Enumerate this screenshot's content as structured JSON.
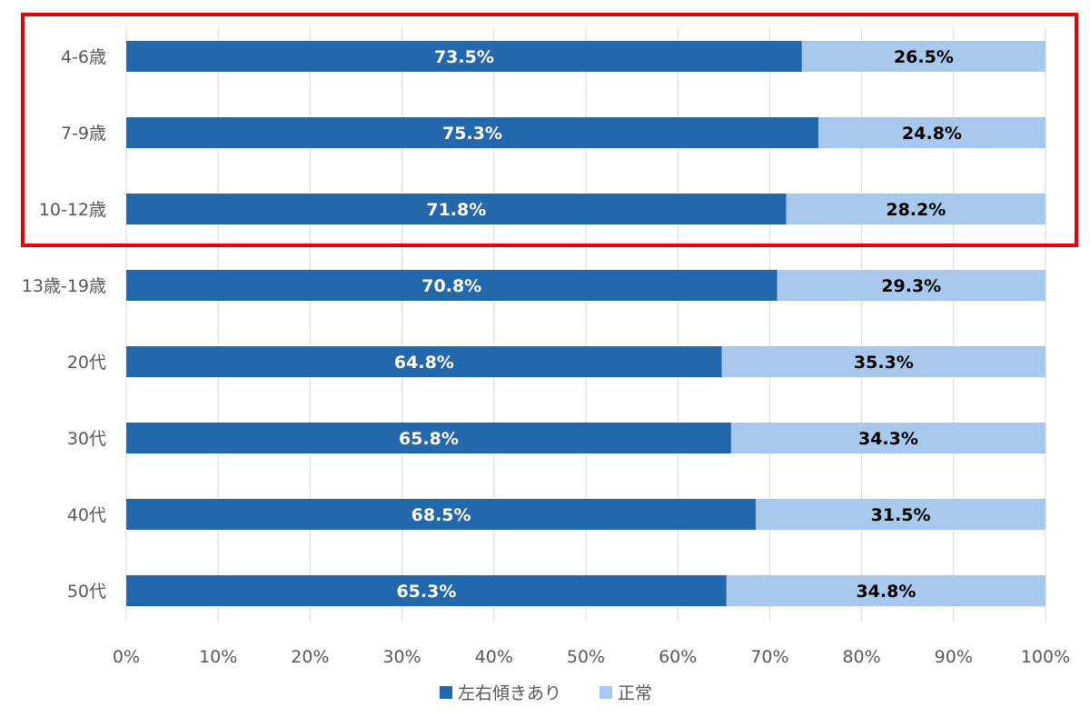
{
  "chart_data": {
    "type": "bar",
    "orientation": "horizontal",
    "stacked": true,
    "title": "",
    "xlabel": "",
    "ylabel": "",
    "xlim": [
      0,
      100
    ],
    "x_tick_labels": [
      "0%",
      "10%",
      "20%",
      "30%",
      "40%",
      "50%",
      "60%",
      "70%",
      "80%",
      "90%",
      "100%"
    ],
    "categories": [
      "4-6歳",
      "7-9歳",
      "10-12歳",
      "13歳-19歳",
      "20代",
      "30代",
      "40代",
      "50代"
    ],
    "series": [
      {
        "name": "左右傾きあり",
        "color": "#2268AA",
        "label_color": "#ffffff",
        "values": [
          73.5,
          75.3,
          71.8,
          70.8,
          64.8,
          65.8,
          68.5,
          65.3
        ],
        "labels": [
          "73.5%",
          "75.3%",
          "71.8%",
          "70.8%",
          "64.8%",
          "65.8%",
          "68.5%",
          "65.3%"
        ]
      },
      {
        "name": "正常",
        "color": "#A8C9ED",
        "label_color": "#000000",
        "values": [
          26.5,
          24.8,
          28.2,
          29.3,
          35.3,
          34.3,
          31.5,
          34.8
        ],
        "labels": [
          "26.5%",
          "24.8%",
          "28.2%",
          "29.3%",
          "35.3%",
          "34.3%",
          "31.5%",
          "34.8%"
        ]
      }
    ],
    "grid": true,
    "grid_color": "#D9D9D9",
    "legend_position": "bottom",
    "highlight": {
      "categories": [
        "4-6歳",
        "7-9歳",
        "10-12歳"
      ],
      "color": "#E8000B"
    }
  }
}
